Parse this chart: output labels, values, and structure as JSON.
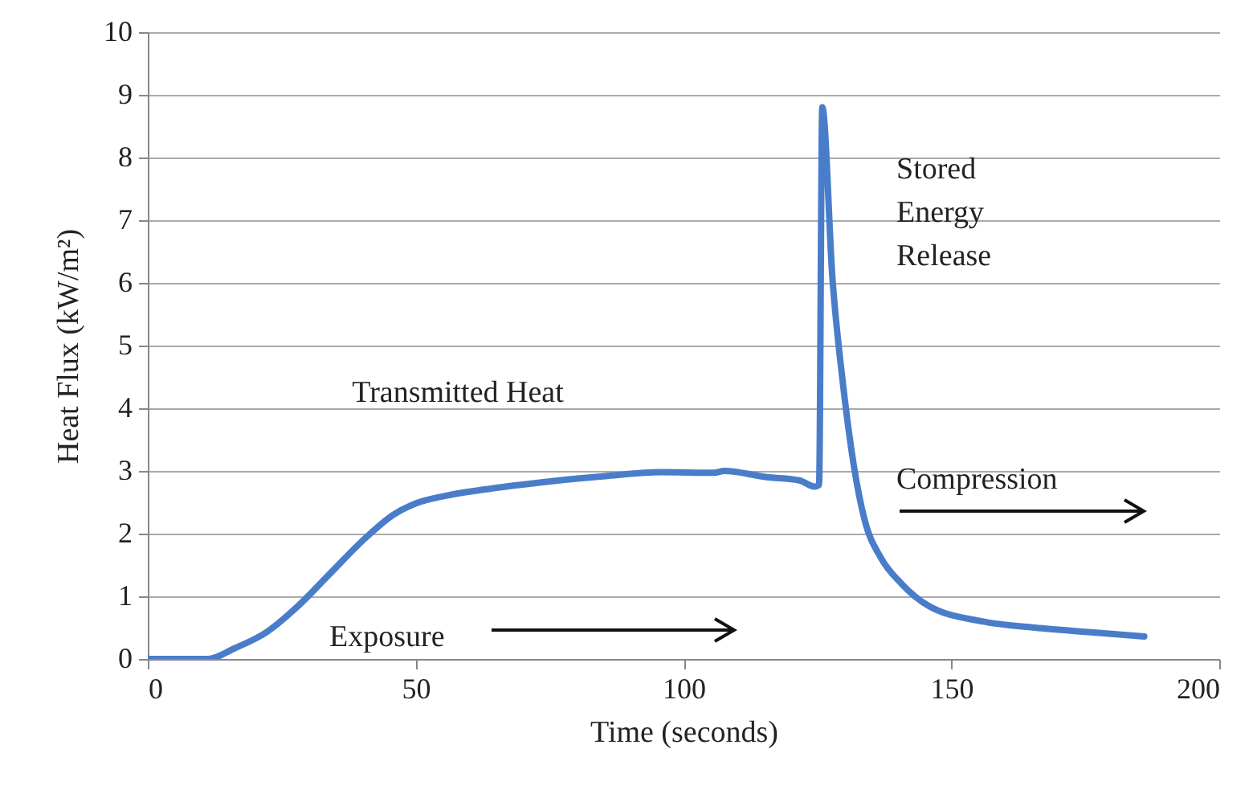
{
  "chart_data": {
    "type": "line",
    "xlabel": "Time (seconds)",
    "ylabel": "Heat Flux (kW/m²)",
    "x": [
      0,
      11.2,
      16.2,
      22.2,
      28.1,
      34.1,
      40,
      46,
      50,
      56,
      66,
      75.8,
      85.8,
      95.7,
      105.7,
      107.6,
      115.6,
      121.6,
      124.5,
      125.3,
      125.9,
      127.8,
      129.8,
      131.8,
      133.8,
      136.8,
      140.7,
      145.7,
      155.7,
      165.6,
      175.6,
      186
    ],
    "series": [
      {
        "color": "#4a7dc9",
        "values": [
          0,
          0,
          0.17,
          0.43,
          0.85,
          1.37,
          1.88,
          2.31,
          2.48,
          2.61,
          2.74,
          2.84,
          2.92,
          2.98,
          2.97,
          3.0,
          2.9,
          2.85,
          2.75,
          2.78,
          8.8,
          6.07,
          4.36,
          3.08,
          2.22,
          1.62,
          1.2,
          0.85,
          0.6,
          0.5,
          0.43,
          0.36
        ]
      }
    ],
    "xlim": [
      0,
      200
    ],
    "xticks": [
      0,
      50,
      100,
      150,
      200
    ],
    "ylim": [
      0,
      10
    ],
    "yticks": [
      0,
      1,
      2,
      3,
      4,
      5,
      6,
      7,
      8,
      9,
      10
    ],
    "grid": "y",
    "marker": "none",
    "line_style": "solid",
    "annotations": [
      "Transmitted Heat",
      "Stored Energy Release",
      "Compression",
      "Exposure"
    ]
  }
}
